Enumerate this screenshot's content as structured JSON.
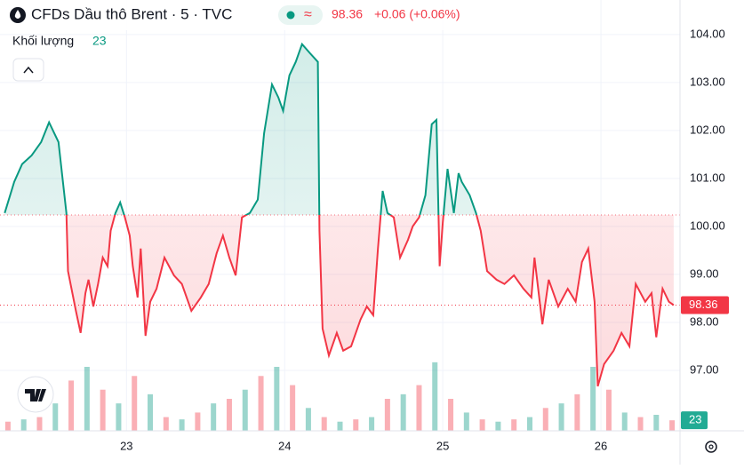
{
  "chart_data": {
    "type": "baseline",
    "title": "CFDs Dầu thô Brent · 5 · TVC",
    "last_price": 98.36,
    "change": "+0.06 (+0.06%)",
    "volume_label": "Khối lượng",
    "volume_last": 23,
    "baseline": 100.24,
    "up_color": "#089981",
    "down_color": "#f23645",
    "grid": true,
    "x": [
      22.23,
      22.29,
      22.34,
      22.4,
      22.46,
      22.51,
      22.57,
      22.62,
      22.63,
      22.68,
      22.71,
      22.74,
      22.76,
      22.79,
      22.82,
      22.85,
      22.88,
      22.9,
      22.93,
      22.96,
      22.99,
      23.02,
      23.04,
      23.07,
      23.09,
      23.12,
      23.15,
      23.19,
      23.24,
      23.3,
      23.35,
      23.41,
      23.47,
      23.52,
      23.57,
      23.61,
      23.65,
      23.69,
      23.73,
      23.78,
      23.83,
      23.87,
      23.92,
      23.96,
      23.99,
      24.03,
      24.07,
      24.11,
      24.16,
      24.21,
      24.22,
      24.24,
      24.28,
      24.33,
      24.37,
      24.42,
      24.48,
      24.52,
      24.56,
      24.59,
      24.62,
      24.65,
      24.69,
      24.73,
      24.78,
      24.81,
      24.85,
      24.89,
      24.93,
      24.96,
      24.98,
      25.0,
      25.03,
      25.07,
      25.1,
      25.12,
      25.17,
      25.21,
      25.24,
      25.28,
      25.34,
      25.39,
      25.45,
      25.51,
      25.56,
      25.58,
      25.63,
      25.67,
      25.73,
      25.79,
      25.84,
      25.88,
      25.92,
      25.96,
      25.98,
      26.02,
      26.08,
      26.13,
      26.18,
      26.22,
      26.28,
      26.32,
      26.35,
      26.39,
      26.43,
      26.46
    ],
    "values": [
      100.28,
      100.93,
      101.3,
      101.48,
      101.76,
      102.17,
      101.76,
      100.28,
      99.07,
      98.24,
      97.78,
      98.61,
      98.89,
      98.33,
      98.8,
      99.35,
      99.17,
      99.91,
      100.28,
      100.5,
      100.19,
      99.81,
      99.17,
      98.52,
      99.54,
      97.72,
      98.43,
      98.7,
      99.35,
      98.98,
      98.8,
      98.24,
      98.52,
      98.8,
      99.44,
      99.81,
      99.35,
      98.98,
      100.19,
      100.28,
      100.56,
      101.94,
      102.96,
      102.69,
      102.41,
      103.15,
      103.43,
      103.8,
      103.61,
      103.43,
      99.91,
      97.87,
      97.31,
      97.78,
      97.41,
      97.5,
      98.06,
      98.33,
      98.15,
      99.54,
      100.74,
      100.28,
      100.19,
      99.35,
      99.72,
      100,
      100.19,
      100.65,
      102.13,
      102.22,
      99.17,
      100.07,
      101.2,
      100.28,
      101.11,
      100.93,
      100.65,
      100.28,
      99.91,
      99.07,
      98.89,
      98.8,
      98.98,
      98.7,
      98.52,
      99.35,
      97.96,
      98.89,
      98.33,
      98.7,
      98.43,
      99.26,
      99.54,
      98.43,
      96.67,
      97.13,
      97.41,
      97.78,
      97.5,
      98.8,
      98.43,
      98.61,
      97.69,
      98.7,
      98.43,
      98.36
    ],
    "xlim": [
      22.2,
      26.5
    ],
    "xticks": [
      23,
      24,
      25,
      26
    ],
    "ylim": [
      95.74,
      104.72
    ],
    "yticks": [
      {
        "value": 97,
        "label": "97.00"
      },
      {
        "value": 98,
        "label": "98.00"
      },
      {
        "value": 99,
        "label": "99.00"
      },
      {
        "value": 100,
        "label": "100.00"
      },
      {
        "value": 101,
        "label": "101.00"
      },
      {
        "value": 102,
        "label": "102.00"
      },
      {
        "value": 103,
        "label": "103.00"
      },
      {
        "value": 104,
        "label": "104.00"
      }
    ],
    "volume": {
      "x": [
        22.25,
        22.35,
        22.45,
        22.55,
        22.65,
        22.75,
        22.85,
        22.95,
        23.05,
        23.15,
        23.25,
        23.35,
        23.45,
        23.55,
        23.65,
        23.75,
        23.85,
        23.95,
        24.05,
        24.15,
        24.25,
        24.35,
        24.45,
        24.55,
        24.65,
        24.75,
        24.85,
        24.95,
        25.05,
        25.15,
        25.25,
        25.35,
        25.45,
        25.55,
        25.65,
        25.75,
        25.85,
        25.95,
        26.05,
        26.15,
        26.25,
        26.35,
        26.45
      ],
      "values": [
        20,
        25,
        30,
        60,
        110,
        140,
        90,
        60,
        120,
        80,
        30,
        25,
        40,
        60,
        70,
        90,
        120,
        140,
        100,
        50,
        30,
        20,
        25,
        30,
        70,
        80,
        100,
        150,
        70,
        40,
        25,
        20,
        25,
        30,
        50,
        60,
        80,
        140,
        90,
        40,
        30,
        35,
        23
      ],
      "ylim": [
        0,
        350
      ],
      "colors": [
        "#f2364566",
        "#08998166"
      ]
    }
  }
}
